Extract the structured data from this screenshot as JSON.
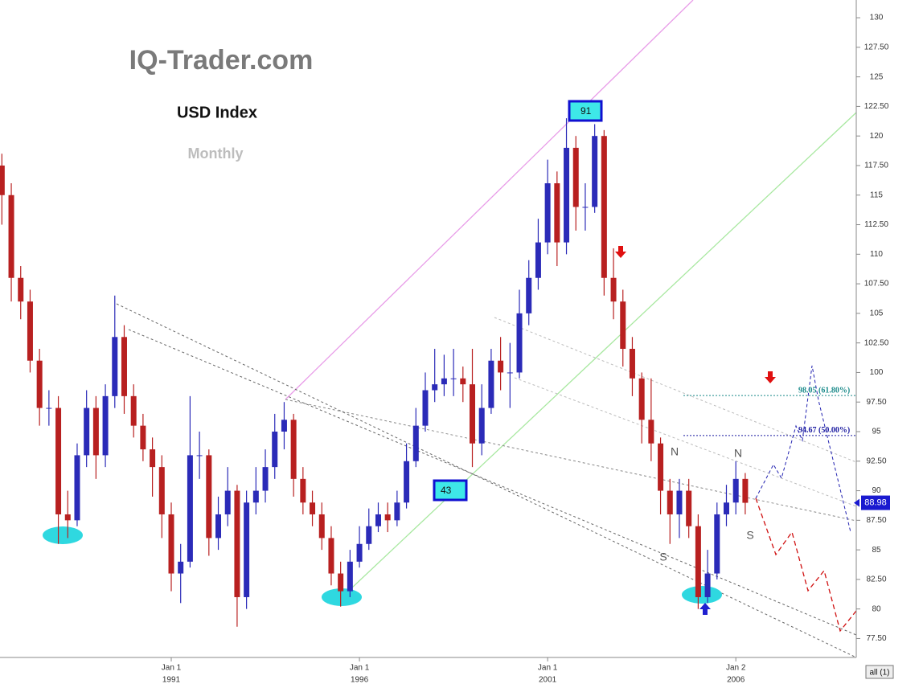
{
  "chart_data": {
    "type": "candlestick",
    "watermark": "IQ-Trader.com",
    "title": "USD Index",
    "subtitle": "Monthly",
    "x": [
      1986.5,
      1986.75,
      1987,
      1987.25,
      1987.5,
      1987.75,
      1988,
      1988.25,
      1988.5,
      1988.75,
      1989,
      1989.25,
      1989.5,
      1989.75,
      1990,
      1990.25,
      1990.5,
      1990.75,
      1991,
      1991.25,
      1991.5,
      1991.75,
      1992,
      1992.25,
      1992.5,
      1992.75,
      1993,
      1993.25,
      1993.5,
      1993.75,
      1994,
      1994.25,
      1994.5,
      1994.75,
      1995,
      1995.25,
      1995.5,
      1995.75,
      1996,
      1996.25,
      1996.5,
      1996.75,
      1997,
      1997.25,
      1997.5,
      1997.75,
      1998,
      1998.25,
      1998.5,
      1998.75,
      1999,
      1999.25,
      1999.5,
      1999.75,
      2000,
      2000.25,
      2000.5,
      2000.75,
      2001,
      2001.25,
      2001.5,
      2001.75,
      2002,
      2002.25,
      2002.5,
      2002.75,
      2003,
      2003.25,
      2003.5,
      2003.75,
      2004,
      2004.25,
      2004.5,
      2004.75,
      2005,
      2005.25,
      2005.5,
      2005.75,
      2006,
      2006.25
    ],
    "open": [
      117.5,
      115,
      108,
      106,
      101,
      97,
      97,
      88,
      87.5,
      93,
      97,
      93,
      98,
      103,
      98,
      95.5,
      93.5,
      92,
      88,
      83,
      84,
      93,
      93,
      86,
      88,
      90,
      81,
      89,
      90,
      92,
      95,
      96,
      91,
      89,
      88,
      86,
      83,
      81.5,
      84,
      85.5,
      87,
      88,
      87.5,
      89,
      92.5,
      95.5,
      98.5,
      99,
      99.5,
      99.5,
      99,
      94,
      97,
      101,
      100,
      100,
      105,
      108,
      111,
      116,
      111,
      119,
      114,
      114,
      120,
      108,
      106,
      102,
      99.5,
      96,
      94,
      90,
      88,
      90,
      87,
      81,
      83,
      88,
      89,
      91
    ],
    "high": [
      118.5,
      116,
      109,
      107,
      102,
      98.5,
      98,
      90,
      94,
      98.5,
      98,
      99,
      106.5,
      104,
      99,
      96.5,
      94.5,
      93,
      89,
      85.5,
      98,
      95,
      93.5,
      89.5,
      92,
      90.5,
      90,
      92,
      93.5,
      96.5,
      97.5,
      96.5,
      92,
      90,
      89,
      87,
      84,
      85,
      87,
      88.5,
      89,
      89,
      90,
      94,
      97,
      100,
      102,
      101.5,
      102,
      100.5,
      102,
      99,
      102,
      103,
      102.5,
      107,
      109.5,
      113,
      118,
      117,
      121.5,
      120,
      116,
      121,
      120.5,
      110.5,
      107,
      103,
      100,
      99.5,
      94.5,
      91,
      91,
      91,
      88,
      85,
      89,
      90.5,
      92.5,
      91.5
    ],
    "low": [
      112.5,
      106,
      104.5,
      100,
      95.5,
      95.5,
      85.5,
      86,
      87,
      92,
      91,
      92,
      97,
      96.5,
      94.5,
      92.5,
      89.5,
      86,
      81.5,
      80.5,
      83.5,
      91,
      84.5,
      85,
      87,
      78.5,
      80,
      88,
      89,
      91,
      93.5,
      89.5,
      88,
      87,
      85,
      82,
      80.2,
      81,
      83.5,
      85,
      86.5,
      86.5,
      87,
      88.5,
      92,
      95,
      97.5,
      98,
      98,
      97.5,
      92,
      93,
      96.5,
      98.5,
      97,
      99.5,
      104,
      107,
      110,
      109,
      110,
      112,
      112,
      113.5,
      106.5,
      104.5,
      100.5,
      98,
      94,
      92.5,
      88,
      85.5,
      86,
      86,
      80,
      80.5,
      82.5,
      87,
      88,
      88
    ],
    "close": [
      115,
      108,
      106,
      101,
      97,
      97,
      88,
      87.5,
      93,
      97,
      93,
      98,
      103,
      98,
      95.5,
      93.5,
      92,
      88,
      83,
      84,
      93,
      93,
      86,
      88,
      90,
      81,
      89,
      90,
      92,
      95,
      96,
      91,
      89,
      88,
      86,
      83,
      81.5,
      84,
      85.5,
      87,
      88,
      87.5,
      89,
      92.5,
      95.5,
      98.5,
      99,
      99.5,
      99.5,
      99,
      94,
      97,
      101,
      100,
      100,
      105,
      108,
      111,
      116,
      111,
      119,
      114,
      114,
      120,
      108,
      106,
      102,
      99.5,
      96,
      94,
      90,
      88,
      90,
      87,
      81,
      83,
      88,
      89,
      91,
      88.98
    ],
    "up_color": "#2b2bb8",
    "down_color": "#b82020",
    "xlim": [
      1986.45,
      2009.2
    ],
    "xticks": [
      {
        "value": 1991,
        "day": "Jan 1",
        "label": "1991"
      },
      {
        "value": 1996,
        "day": "Jan 1",
        "label": "1996"
      },
      {
        "value": 2001,
        "day": "Jan 1",
        "label": "2001"
      },
      {
        "value": 2006,
        "day": "Jan 2",
        "label": "2006"
      }
    ],
    "ylim": [
      75.9,
      131.5
    ],
    "yticks": [
      {
        "value": 77.5,
        "label": "77.50"
      },
      80,
      {
        "value": 82.5,
        "label": "82.50"
      },
      85,
      {
        "value": 87.5,
        "label": "87.50"
      },
      90,
      {
        "value": 92.5,
        "label": "92.50"
      },
      95,
      {
        "value": 97.5,
        "label": "97.50"
      },
      100,
      {
        "value": 102.5,
        "label": "102.50"
      },
      105,
      {
        "value": 107.5,
        "label": "107.50"
      },
      110,
      {
        "value": 112.5,
        "label": "112.50"
      },
      115,
      {
        "value": 117.5,
        "label": "117.50"
      },
      120,
      {
        "value": 122.5,
        "label": "122.50"
      },
      125,
      {
        "value": 127.5,
        "label": "127.50"
      },
      130
    ],
    "fib_levels": [
      {
        "value": 98.05,
        "label": "98.05 (61.80%)",
        "color": "#1a8a8a"
      },
      {
        "value": 94.67,
        "label": "94.67 (50.00%)",
        "color": "#1a1aa0"
      }
    ],
    "last_price": 88.98,
    "boxes": [
      "91",
      "43"
    ],
    "pattern_labels": [
      "N",
      "N",
      "S",
      "S"
    ],
    "button": "all (1)"
  }
}
